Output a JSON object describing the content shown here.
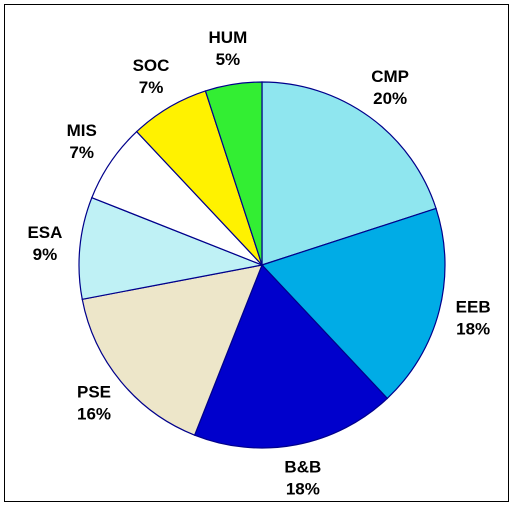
{
  "chart_data": {
    "type": "pie",
    "categories": [
      "CMP",
      "EEB",
      "B&B",
      "PSE",
      "ESA",
      "MIS",
      "SOC",
      "HUM"
    ],
    "values": [
      20,
      18,
      18,
      16,
      9,
      7,
      7,
      5
    ],
    "value_labels": [
      "20%",
      "18%",
      "18%",
      "16%",
      "9%",
      "7%",
      "7%",
      "5%"
    ],
    "colors": [
      "#8fe6ef",
      "#00acE6",
      "#0000cc",
      "#ede6c9",
      "#bff1f5",
      "#ffffff",
      "#fff200",
      "#33ee33"
    ]
  }
}
